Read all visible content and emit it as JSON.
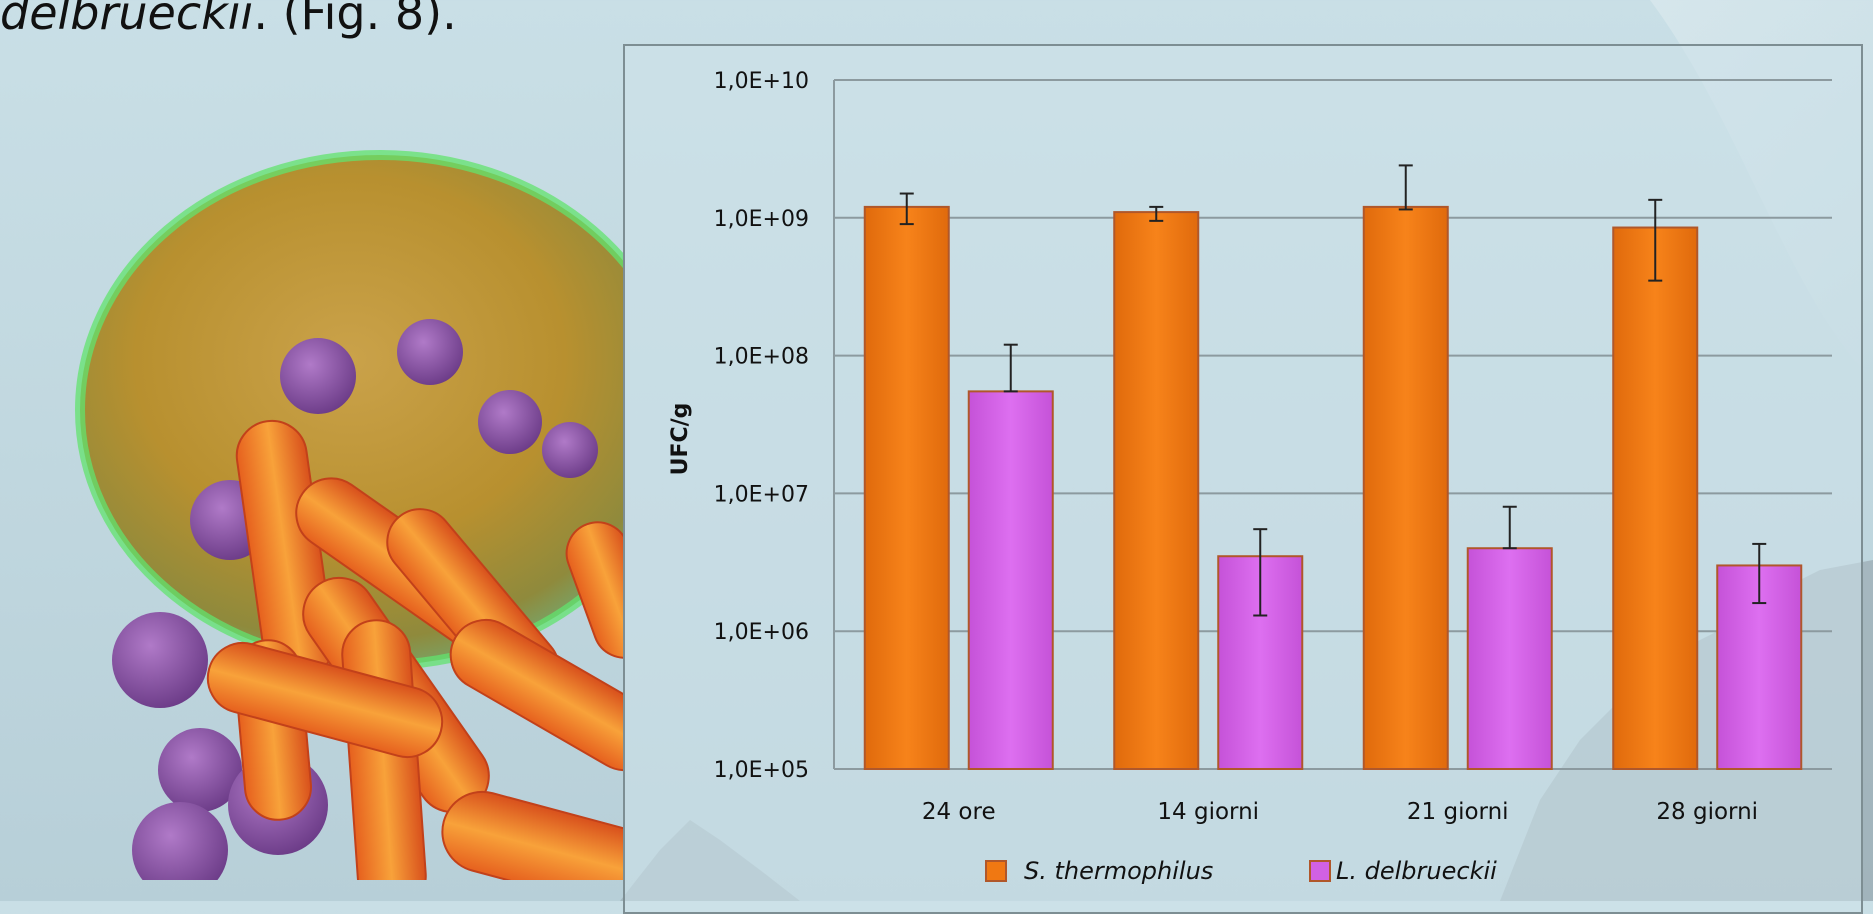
{
  "caption": {
    "species": "delbrueckii",
    "suffix": ". (Fig. 8)."
  },
  "colors": {
    "s_thermophilus": "#f07812",
    "l_delbrueckii": "#d161e3",
    "bar_edge": "#b0572a",
    "grid": "#8c9a9f"
  },
  "chart_data": {
    "type": "bar",
    "scale": "log",
    "ylabel": "UFC/g",
    "xlabel": "",
    "title": "",
    "ylim": [
      100000,
      10000000000
    ],
    "y_ticks": [
      {
        "value": 100000,
        "label": "1,0E+05"
      },
      {
        "value": 1000000,
        "label": "1,0E+06"
      },
      {
        "value": 10000000,
        "label": "1,0E+07"
      },
      {
        "value": 100000000,
        "label": "1,0E+08"
      },
      {
        "value": 1000000000,
        "label": "1,0E+09"
      },
      {
        "value": 10000000000,
        "label": "1,0E+10"
      }
    ],
    "grid": true,
    "legend_position": "bottom",
    "categories": [
      "24 ore",
      "14 giorni",
      "21 giorni",
      "28 giorni"
    ],
    "series": [
      {
        "name": "S. thermophilus",
        "color": "#f07812",
        "values": [
          1200000000,
          1100000000,
          1200000000,
          850000000
        ],
        "error_low": [
          900000000,
          950000000,
          1150000000,
          350000000
        ],
        "error_high": [
          1500000000,
          1200000000,
          2400000000,
          1350000000
        ]
      },
      {
        "name": "L. delbrueckii",
        "color": "#d161e3",
        "values": [
          55000000,
          3500000,
          4000000,
          3000000
        ],
        "error_low": [
          55000000,
          1300000,
          4000000,
          1600000
        ],
        "error_high": [
          120000000,
          5500000,
          8000000,
          4300000
        ]
      }
    ]
  }
}
